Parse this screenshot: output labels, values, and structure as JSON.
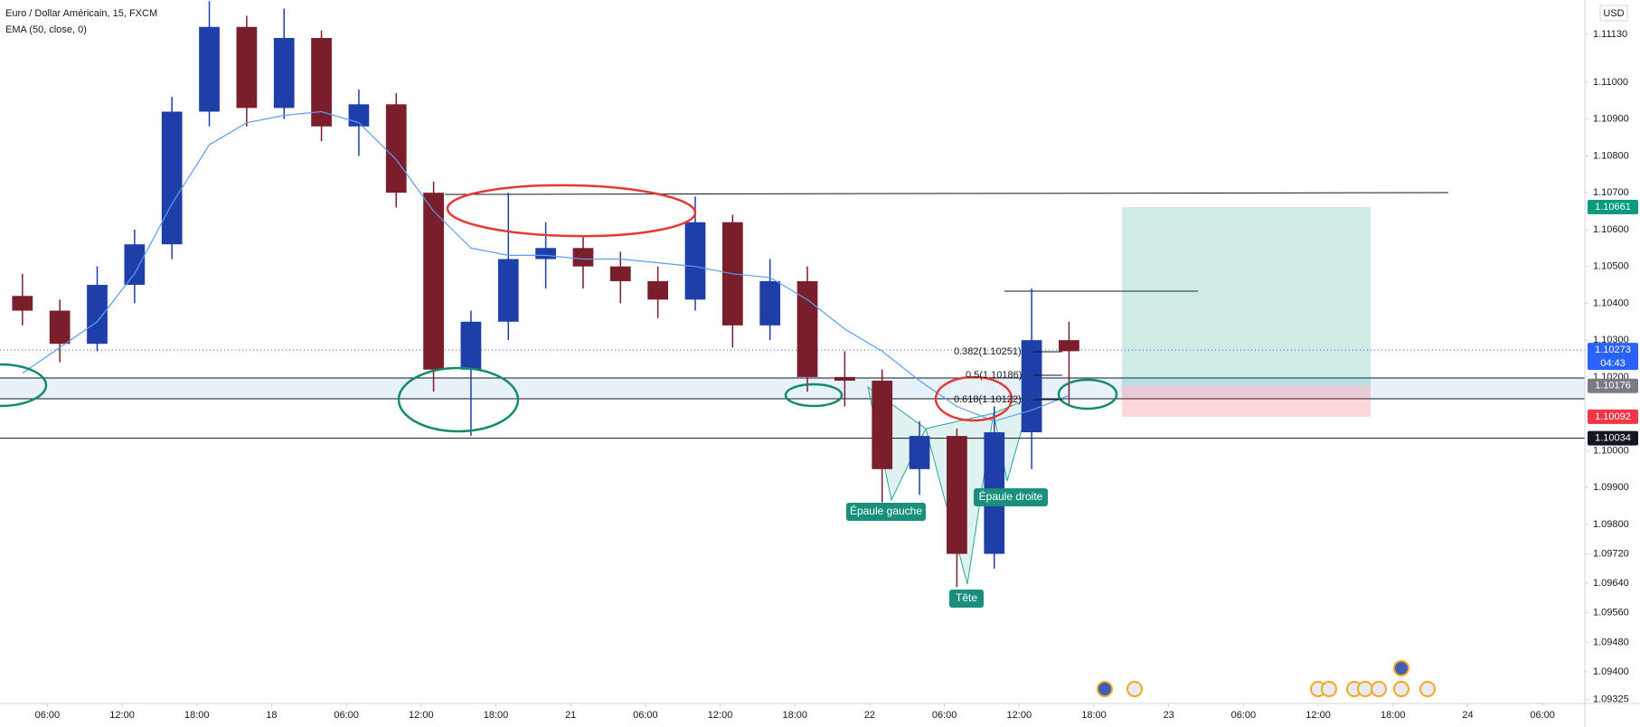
{
  "chart_data": {
    "type": "candlestick",
    "title": "Euro / Dollar Américain, 15, FXCM",
    "currency": "USD",
    "x": [
      4,
      7,
      10,
      13,
      16,
      19,
      22,
      25,
      28,
      31,
      34,
      37,
      40,
      43,
      46,
      49,
      52,
      55,
      58,
      61,
      64,
      67,
      70,
      73,
      76,
      79,
      82,
      85,
      88
    ],
    "open": [
      1.1042,
      1.1038,
      1.1029,
      1.1045,
      1.1056,
      1.1092,
      1.1115,
      1.1093,
      1.1112,
      1.1088,
      1.1094,
      1.107,
      1.1022,
      1.1035,
      1.1052,
      1.1055,
      1.105,
      1.1046,
      1.1041,
      1.1062,
      1.1034,
      1.1046,
      1.102,
      1.1019,
      1.0995,
      1.1004,
      1.0972,
      1.1005,
      1.103
    ],
    "high": [
      1.1048,
      1.1041,
      1.105,
      1.106,
      1.1096,
      1.1122,
      1.1118,
      1.112,
      1.1114,
      1.1098,
      1.1097,
      1.1073,
      1.1038,
      1.107,
      1.1062,
      1.1058,
      1.1054,
      1.105,
      1.1069,
      1.1064,
      1.1052,
      1.105,
      1.1027,
      1.1022,
      1.1008,
      1.1006,
      1.1012,
      1.1044,
      1.1035
    ],
    "low": [
      1.1034,
      1.1024,
      1.1027,
      1.104,
      1.1052,
      1.1088,
      1.1088,
      1.109,
      1.1084,
      1.108,
      1.1066,
      1.1016,
      1.1004,
      1.103,
      1.1044,
      1.1044,
      1.104,
      1.1036,
      1.1038,
      1.1028,
      1.103,
      1.1016,
      1.1012,
      1.0986,
      1.0988,
      1.0963,
      1.0968,
      1.0995,
      1.1012
    ],
    "close": [
      1.1038,
      1.1029,
      1.1045,
      1.1056,
      1.1092,
      1.1115,
      1.1093,
      1.1112,
      1.1088,
      1.1094,
      1.107,
      1.1022,
      1.1035,
      1.1052,
      1.1055,
      1.105,
      1.1046,
      1.1041,
      1.1062,
      1.1034,
      1.1046,
      1.102,
      1.1019,
      1.0995,
      1.1004,
      1.0972,
      1.1005,
      1.103,
      1.1027
    ],
    "up_color": "#1f3fa8",
    "down_color": "#7a1e2b",
    "series": [
      {
        "name": "EMA (50, close, 0)",
        "color": "#5b9cf6",
        "values": [
          1.1021,
          1.1028,
          1.1035,
          1.1048,
          1.1067,
          1.1083,
          1.1089,
          1.1091,
          1.1092,
          1.1089,
          1.1079,
          1.1065,
          1.1055,
          1.1053,
          1.1053,
          1.1052,
          1.1052,
          1.1051,
          1.105,
          1.1048,
          1.1047,
          1.1041,
          1.1033,
          1.1027,
          1.1019,
          1.1012,
          1.1008,
          1.1011,
          1.1015
        ]
      }
    ],
    "xlim": [
      2.2,
      129.4
    ],
    "xticks": [
      {
        "value": 6,
        "label": "06:00"
      },
      {
        "value": 12,
        "label": "12:00"
      },
      {
        "value": 18,
        "label": "18:00"
      },
      {
        "value": 24,
        "label": "18"
      },
      {
        "value": 30,
        "label": "06:00"
      },
      {
        "value": 36,
        "label": "12:00"
      },
      {
        "value": 42,
        "label": "18:00"
      },
      {
        "value": 48,
        "label": "21"
      },
      {
        "value": 54,
        "label": "06:00"
      },
      {
        "value": 60,
        "label": "12:00"
      },
      {
        "value": 66,
        "label": "18:00"
      },
      {
        "value": 72,
        "label": "22"
      },
      {
        "value": 78,
        "label": "06:00"
      },
      {
        "value": 84,
        "label": "12:00"
      },
      {
        "value": 90,
        "label": "18:00"
      },
      {
        "value": 96,
        "label": "23"
      },
      {
        "value": 102,
        "label": "06:00"
      },
      {
        "value": 108,
        "label": "12:00"
      },
      {
        "value": 114,
        "label": "18:00"
      },
      {
        "value": 120,
        "label": "24"
      },
      {
        "value": 126,
        "label": "06:00"
      }
    ],
    "ylim": [
      1.09314,
      1.11223
    ],
    "yticks": [
      {
        "value": 1.1113,
        "label": "1.11130"
      },
      {
        "value": 1.11,
        "label": "1.11000"
      },
      {
        "value": 1.109,
        "label": "1.10900"
      },
      {
        "value": 1.108,
        "label": "1.10800"
      },
      {
        "value": 1.107,
        "label": "1.10700"
      },
      {
        "value": 1.106,
        "label": "1.10600"
      },
      {
        "value": 1.105,
        "label": "1.10500"
      },
      {
        "value": 1.104,
        "label": "1.10400"
      },
      {
        "value": 1.103,
        "label": "1.10300"
      },
      {
        "value": 1.102,
        "label": "1.10200"
      },
      {
        "value": 1.1,
        "label": "1.10000"
      },
      {
        "value": 1.099,
        "label": "1.09900"
      },
      {
        "value": 1.098,
        "label": "1.09800"
      },
      {
        "value": 1.0972,
        "label": "1.09720"
      },
      {
        "value": 1.0964,
        "label": "1.09640"
      },
      {
        "value": 1.0956,
        "label": "1.09560"
      },
      {
        "value": 1.0948,
        "label": "1.09480"
      },
      {
        "value": 1.094,
        "label": "1.09400"
      },
      1.09325
    ],
    "grid": false,
    "position": {
      "target": 1.10661,
      "entry": 1.10176,
      "stop": 1.10092,
      "target_color": "#089981",
      "entry_color": "#787b86",
      "stop_color": "#f23645"
    },
    "last_price": {
      "value": 1.10273,
      "countdown": "04:43",
      "color": "#2962ff"
    },
    "level": {
      "value": 1.10034,
      "color": "#131722"
    },
    "fib_labels": [
      "0.382(1.10251)",
      "0.5(1.10186)",
      "0.618(1.10122)"
    ],
    "pattern_labels": [
      "Épaule gauche",
      "Tête",
      "Épaule droite"
    ]
  }
}
